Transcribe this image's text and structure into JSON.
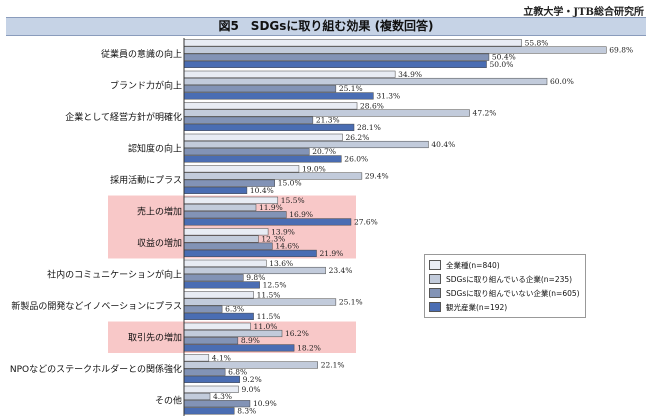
{
  "source": "立教大学・JTB総合研究所",
  "title": "図5　SDGsに取り組む効果 (複数回答)",
  "colors": [
    "#e8ecf4",
    "#c2cbdb",
    "#8293b6",
    "#4a6db3"
  ],
  "highlight_color": "#f8c8c8",
  "chart_data": {
    "type": "bar",
    "orientation": "horizontal",
    "categories": [
      "従業員の意識の向上",
      "ブランド力が向上",
      "企業として経営方針が明確化",
      "認知度の向上",
      "採用活動にプラス",
      "売上の増加",
      "収益の増加",
      "社内のコミュニケーションが向上",
      "新製品の開発などイノベーションにプラス",
      "取引先の増加",
      "NPOなどのステークホルダーとの関係強化",
      "その他"
    ],
    "highlighted_categories": [
      "売上の増加",
      "収益の増加",
      "取引先の増加"
    ],
    "series": [
      {
        "name": "全業種(n=840)",
        "values": [
          55.8,
          34.9,
          28.6,
          26.2,
          19.0,
          15.5,
          13.9,
          13.6,
          11.5,
          11.0,
          4.1,
          9.0
        ]
      },
      {
        "name": "SDGsに取り組んでいる企業(n=235)",
        "values": [
          69.8,
          60.0,
          47.2,
          40.4,
          29.4,
          11.9,
          12.3,
          23.4,
          25.1,
          16.2,
          22.1,
          4.3
        ]
      },
      {
        "name": "SDGsに取り組んでいない企業(n=605)",
        "values": [
          50.4,
          25.1,
          21.3,
          20.7,
          15.0,
          16.9,
          14.6,
          9.8,
          6.3,
          8.9,
          6.8,
          10.9
        ]
      },
      {
        "name": "観光産業(n=192)",
        "values": [
          50.0,
          31.3,
          28.1,
          26.0,
          10.4,
          27.6,
          21.9,
          12.5,
          11.5,
          18.2,
          9.2,
          8.3
        ]
      }
    ],
    "labels": [
      [
        "55.8%",
        "34.9%",
        "28.6%",
        "26.2%",
        "19.0%",
        "15.5%",
        "13.9%",
        "13.6%",
        "11.5%",
        "11.0%",
        "4.1%",
        "9.0%"
      ],
      [
        "69.8%",
        "60.0%",
        "47.2%",
        "40.4%",
        "29.4%",
        "11.9%",
        "12.3%",
        "23.4%",
        "25.1%",
        "16.2%",
        "22.1%",
        "4.3%"
      ],
      [
        "50.4%",
        "25.1%",
        "21.3%",
        "20.7%",
        "15.0%",
        "16.9%",
        "14.6%",
        "9.8%",
        "6.3%",
        "8.9%",
        "6.8%",
        "10.9%"
      ],
      [
        "50.0%",
        "31.3%",
        "28.1%",
        "26.0%",
        "10.4%",
        "27.6%",
        "21.9%",
        "12.5%",
        "11.5%",
        "18.2%",
        "9.2%",
        "8.3%"
      ]
    ],
    "xlim": [
      0,
      70
    ],
    "grid": false,
    "legend_position": "bottom-right"
  }
}
